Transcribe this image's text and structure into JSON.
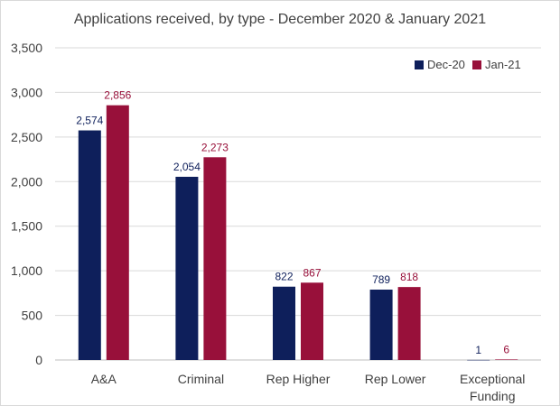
{
  "chart_data": {
    "type": "bar",
    "title": "Applications received, by type - December 2020 & January 2021",
    "categories": [
      "A&A",
      "Criminal",
      "Rep Higher",
      "Rep Lower",
      "Exceptional Funding"
    ],
    "series": [
      {
        "name": "Dec-20",
        "color": "#0e1f5b",
        "values": [
          2574,
          2054,
          822,
          789,
          1
        ],
        "labels": [
          "2,574",
          "2,054",
          "822",
          "789",
          "1"
        ]
      },
      {
        "name": "Jan-21",
        "color": "#98103a",
        "values": [
          2856,
          2273,
          867,
          818,
          6
        ],
        "labels": [
          "2,856",
          "2,273",
          "867",
          "818",
          "6"
        ]
      }
    ],
    "ylim": [
      0,
      3500
    ],
    "yticks": [
      0,
      500,
      1000,
      1500,
      2000,
      2500,
      3000,
      3500
    ],
    "ytick_labels": [
      "0",
      "500",
      "1,000",
      "1,500",
      "2,000",
      "2,500",
      "3,000",
      "3,500"
    ],
    "grid": true,
    "legend_position": "top-right",
    "xlabel": "",
    "ylabel": ""
  }
}
